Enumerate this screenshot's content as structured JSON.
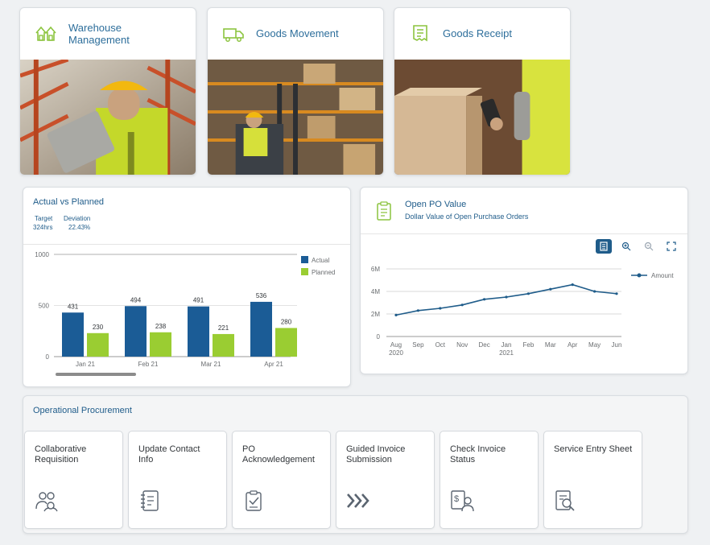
{
  "tiles": [
    {
      "title": "Warehouse\nManagement",
      "icon": "warehouse-icon"
    },
    {
      "title": "Goods Movement",
      "icon": "truck-icon"
    },
    {
      "title": "Goods Receipt",
      "icon": "receipt-icon"
    }
  ],
  "actual_vs_planned": {
    "title": "Actual vs Planned",
    "target_label": "Target",
    "target_value": "324hrs",
    "deviation_label": "Deviation",
    "deviation_value": "22.43%"
  },
  "open_po": {
    "title": "Open PO Value",
    "subtitle": "Dollar Value of Open Purchase Orders",
    "icon": "clipboard-icon"
  },
  "procurement": {
    "title": "Operational Procurement",
    "tiles": [
      {
        "label": "Collaborative\nRequisition",
        "icon": "people-icon"
      },
      {
        "label": "Update Contact\nInfo",
        "icon": "address-book-icon"
      },
      {
        "label": "PO\nAcknowledgement",
        "icon": "clipboard-check-icon"
      },
      {
        "label": "Guided Invoice\nSubmission",
        "icon": "chevrons-icon"
      },
      {
        "label": "Check Invoice\nStatus",
        "icon": "invoice-person-icon"
      },
      {
        "label": "Service Entry Sheet",
        "icon": "document-search-icon"
      }
    ]
  },
  "colors": {
    "actual": "#1b5c96",
    "planned": "#9acd32",
    "line": "#1f5c8a",
    "accent": "#8cc43f"
  },
  "chart_data": [
    {
      "type": "bar",
      "title": "Actual vs Planned",
      "categories": [
        "Jan 21",
        "Feb 21",
        "Mar 21",
        "Apr 21"
      ],
      "series": [
        {
          "name": "Actual",
          "values": [
            431,
            494,
            491,
            536
          ]
        },
        {
          "name": "Planned",
          "values": [
            230,
            238,
            221,
            280
          ]
        }
      ],
      "yticks": [
        "0",
        "500",
        "1000"
      ],
      "ylim": [
        0,
        1000
      ],
      "legend": "right"
    },
    {
      "type": "line",
      "title": "Open PO Value",
      "series": [
        {
          "name": "Amount",
          "x": [
            "2020-08",
            "2020-09",
            "2020-10",
            "2020-11",
            "2020-12",
            "2021-01",
            "2021-02",
            "2021-03",
            "2021-04",
            "2021-05",
            "2021-06"
          ],
          "values": [
            1.9,
            2.3,
            2.5,
            2.8,
            3.3,
            3.5,
            3.8,
            4.2,
            4.6,
            4.0,
            3.8
          ]
        }
      ],
      "xticks": [
        "Aug",
        "Sep",
        "Oct",
        "Nov",
        "Dec",
        "Jan",
        "Feb",
        "Mar",
        "Apr",
        "May",
        "Jun"
      ],
      "xyears": [
        "2020",
        "2021"
      ],
      "yticks": [
        "0",
        "2M",
        "4M",
        "6M"
      ],
      "ylim": [
        0,
        6
      ],
      "legend": "right",
      "toolbar": [
        "table-icon",
        "zoom-in-icon",
        "zoom-out-icon",
        "fullscreen-icon"
      ]
    }
  ]
}
